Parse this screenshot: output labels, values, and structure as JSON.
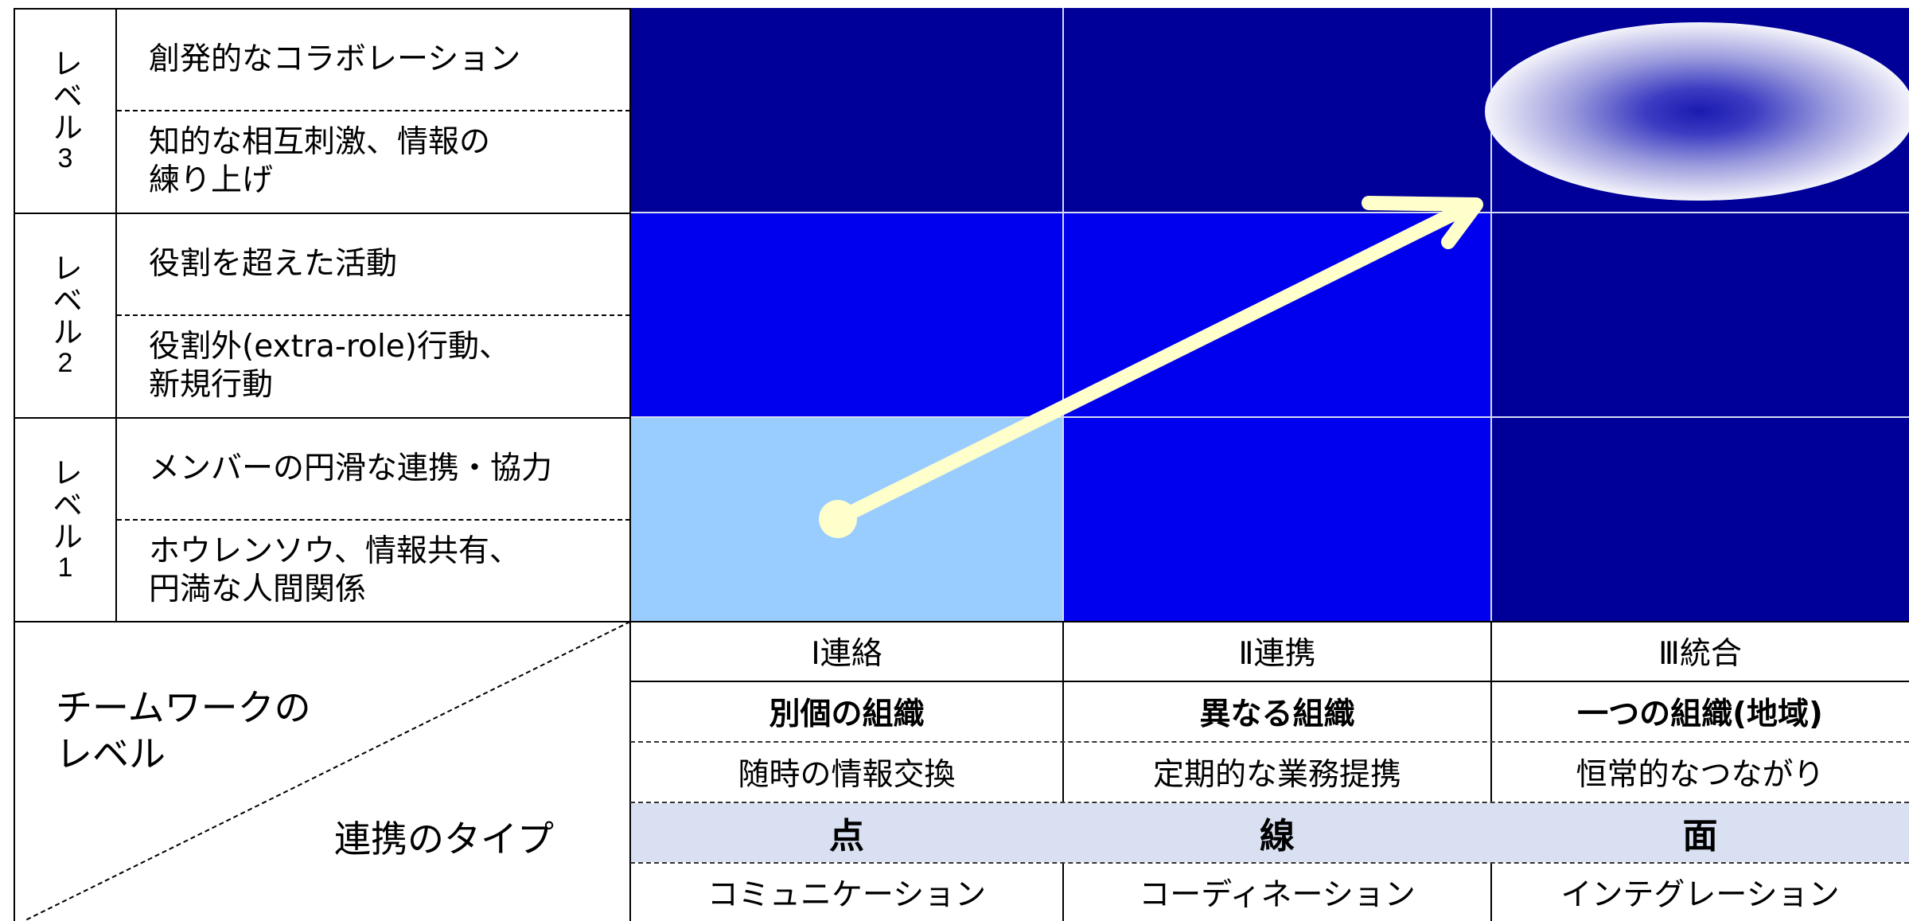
{
  "levels": [
    {
      "label_chars": [
        "レ",
        "ベ",
        "ル"
      ],
      "label_number": "3",
      "top_desc": "創発的なコラボレーション",
      "bottom_desc": "知的な相互刺激、情報の\n練り上げ"
    },
    {
      "label_chars": [
        "レ",
        "ベ",
        "ル"
      ],
      "label_number": "2",
      "top_desc": "役割を超えた活動",
      "bottom_desc": "役割外(extra-role)行動、\n新規行動"
    },
    {
      "label_chars": [
        "レ",
        "ベ",
        "ル"
      ],
      "label_number": "1",
      "top_desc": "メンバーの円滑な連携・協力",
      "bottom_desc": "ホウレンソウ、情報共有、\n円満な人間関係"
    }
  ],
  "columns": [
    {
      "header": "Ⅰ連絡",
      "organization": "別個の組織",
      "activity": "随時の情報交換",
      "shape": "点",
      "term": "コミュニケーション"
    },
    {
      "header": "Ⅱ連携",
      "organization": "異なる組織",
      "activity": "定期的な業務提携",
      "shape": "線",
      "term": "コーディネーション"
    },
    {
      "header": "Ⅲ統合",
      "organization": "一つの組織(地域)",
      "activity": "恒常的なつながり",
      "shape": "面",
      "term": "インテグレーション"
    }
  ],
  "corner": {
    "teamwork_level": "チームワークの\nレベル",
    "collaboration_type": "連携のタイプ"
  },
  "colors": {
    "dark_navy": "#000099",
    "blue": "#0000ee",
    "light_blue": "#99ccff",
    "arrow": "#ffffcc",
    "shaded_row": "#d8e0f1"
  }
}
